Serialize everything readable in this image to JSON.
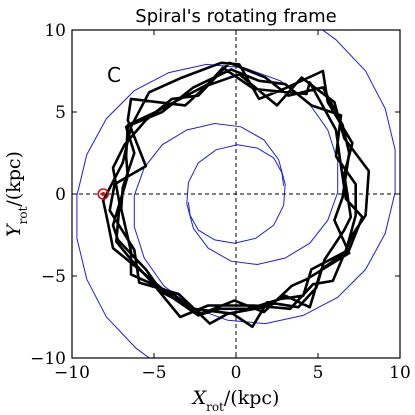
{
  "chart_data": {
    "type": "line",
    "title": "Spiral's rotating frame",
    "panel_label": "C",
    "xlabel": {
      "symbol": "X",
      "subscript": "rot",
      "unit": "/(kpc)"
    },
    "ylabel": {
      "symbol": "Y",
      "subscript": "rot",
      "unit": "/(kpc)"
    },
    "xlim": [
      -10,
      10
    ],
    "ylim": [
      -10,
      10
    ],
    "xticks": [
      -10,
      -5,
      0,
      5,
      10
    ],
    "yticks": [
      -10,
      -5,
      0,
      5,
      10
    ],
    "xtick_labels": [
      "−10",
      "−5",
      "0",
      "5",
      "10"
    ],
    "ytick_labels": [
      "−10",
      "−5",
      "0",
      "5",
      "10"
    ],
    "zero_lines": {
      "x": 0,
      "y": 0,
      "style": "dashed"
    },
    "grid": false,
    "colors": {
      "spiral_arms": "#1f1fd6",
      "orbit": "#000000",
      "sun_marker": "#d01010"
    },
    "series": [
      {
        "role": "spiral-arms",
        "arms": [
          {
            "points": [
              [
                2.9,
                0.5
              ],
              [
                2.8,
                1.3
              ],
              [
                2.3,
                2.2
              ],
              [
                1.3,
                2.8
              ],
              [
                0.1,
                3.0
              ],
              [
                -1.2,
                2.7
              ],
              [
                -2.3,
                1.9
              ],
              [
                -2.9,
                0.7
              ],
              [
                -3.0,
                -0.6
              ],
              [
                -2.6,
                -2.1
              ],
              [
                -1.7,
                -3.3
              ],
              [
                -0.3,
                -4.1
              ],
              [
                1.3,
                -4.3
              ],
              [
                3.0,
                -3.9
              ],
              [
                4.5,
                -3.0
              ],
              [
                5.6,
                -1.6
              ],
              [
                6.2,
                0.1
              ],
              [
                6.2,
                2.0
              ],
              [
                5.6,
                3.9
              ],
              [
                4.4,
                5.6
              ],
              [
                2.7,
                6.9
              ],
              [
                0.5,
                7.7
              ],
              [
                -1.8,
                7.9
              ],
              [
                -4.1,
                7.4
              ],
              [
                -6.2,
                6.3
              ],
              [
                -7.9,
                4.6
              ],
              [
                -9.1,
                2.4
              ],
              [
                -9.7,
                -0.1
              ],
              [
                -9.7,
                -2.7
              ],
              [
                -9.1,
                -5.2
              ],
              [
                -7.9,
                -7.5
              ],
              [
                -6.1,
                -9.4
              ],
              [
                -4.2,
                -10.8
              ],
              [
                -1.5,
                -11.7
              ],
              [
                1.0,
                -12.0
              ]
            ]
          },
          {
            "points": [
              [
                -2.9,
                -0.5
              ],
              [
                -2.8,
                -1.3
              ],
              [
                -2.3,
                -2.2
              ],
              [
                -1.3,
                -2.8
              ],
              [
                -0.1,
                -3.0
              ],
              [
                1.2,
                -2.7
              ],
              [
                2.3,
                -1.9
              ],
              [
                2.9,
                -0.7
              ],
              [
                3.0,
                0.6
              ],
              [
                2.6,
                2.1
              ],
              [
                1.7,
                3.3
              ],
              [
                0.3,
                4.1
              ],
              [
                -1.3,
                4.3
              ],
              [
                -3.0,
                3.9
              ],
              [
                -4.5,
                3.0
              ],
              [
                -5.6,
                1.6
              ],
              [
                -6.2,
                -0.1
              ],
              [
                -6.2,
                -2.0
              ],
              [
                -5.6,
                -3.9
              ],
              [
                -4.4,
                -5.6
              ],
              [
                -2.7,
                -6.9
              ],
              [
                -0.5,
                -7.7
              ],
              [
                1.8,
                -7.9
              ],
              [
                4.1,
                -7.4
              ],
              [
                6.2,
                -6.3
              ],
              [
                7.9,
                -4.6
              ],
              [
                9.1,
                -2.4
              ],
              [
                9.7,
                0.1
              ],
              [
                9.7,
                2.7
              ],
              [
                9.1,
                5.2
              ],
              [
                7.9,
                7.5
              ],
              [
                6.1,
                9.4
              ],
              [
                4.2,
                10.8
              ],
              [
                1.5,
                11.7
              ],
              [
                -1.0,
                12.0
              ]
            ]
          }
        ]
      },
      {
        "role": "orbit",
        "points": [
          [
            -8.1,
            -0.4
          ],
          [
            -6.9,
            1.9
          ],
          [
            -6.4,
            4.1
          ],
          [
            -5.3,
            6.2
          ],
          [
            -3.3,
            7.1
          ],
          [
            -0.9,
            8.0
          ],
          [
            0.2,
            7.9
          ],
          [
            1.4,
            5.8
          ],
          [
            2.9,
            6.4
          ],
          [
            5.3,
            7.5
          ],
          [
            5.6,
            5.6
          ],
          [
            7.1,
            3.1
          ],
          [
            6.6,
            1.2
          ],
          [
            7.0,
            -1.4
          ],
          [
            6.6,
            -2.2
          ],
          [
            5.4,
            -4.0
          ],
          [
            4.9,
            -5.7
          ],
          [
            3.8,
            -6.9
          ],
          [
            1.9,
            -6.6
          ],
          [
            1.0,
            -8.1
          ],
          [
            -0.2,
            -7.3
          ],
          [
            -2.6,
            -7.0
          ],
          [
            -4.5,
            -6.0
          ],
          [
            -5.5,
            -4.6
          ],
          [
            -7.2,
            -2.8
          ],
          [
            -7.5,
            -1.9
          ],
          [
            -6.6,
            1.1
          ],
          [
            -6.7,
            2.3
          ],
          [
            -6.6,
            4.2
          ],
          [
            -4.9,
            5.0
          ],
          [
            -1.7,
            6.7
          ],
          [
            -0.8,
            7.7
          ],
          [
            1.1,
            6.4
          ],
          [
            4.3,
            6.1
          ],
          [
            4.5,
            6.8
          ],
          [
            6.1,
            3.9
          ],
          [
            6.3,
            2.4
          ],
          [
            6.7,
            -0.3
          ],
          [
            7.7,
            -1.4
          ],
          [
            6.9,
            -3.4
          ],
          [
            5.2,
            -4.6
          ],
          [
            4.5,
            -6.9
          ],
          [
            3.0,
            -6.2
          ],
          [
            1.7,
            -6.9
          ],
          [
            -0.5,
            -7.3
          ],
          [
            -1.6,
            -7.9
          ],
          [
            -3.5,
            -6.1
          ],
          [
            -5.9,
            -5.4
          ],
          [
            -6.2,
            -3.4
          ],
          [
            -7.7,
            -1.0
          ],
          [
            -7.4,
            0.6
          ],
          [
            -5.5,
            1.7
          ],
          [
            -6.6,
            4.5
          ],
          [
            -6.4,
            5.8
          ],
          [
            -3.1,
            5.4
          ],
          [
            -1.8,
            6.6
          ],
          [
            0.2,
            7.3
          ],
          [
            2.5,
            5.4
          ],
          [
            4.0,
            7.1
          ],
          [
            6.0,
            5.6
          ],
          [
            6.6,
            3.4
          ],
          [
            8.1,
            1.4
          ],
          [
            7.9,
            -1.3
          ],
          [
            7.1,
            -2.5
          ],
          [
            5.9,
            -5.3
          ],
          [
            4.7,
            -5.5
          ],
          [
            3.3,
            -7.0
          ],
          [
            1.1,
            -6.8
          ],
          [
            -1.7,
            -6.8
          ],
          [
            -3.4,
            -7.5
          ],
          [
            -5.2,
            -5.3
          ],
          [
            -6.4,
            -4.0
          ],
          [
            -7.3,
            -2.9
          ],
          [
            -7.1,
            -0.6
          ],
          [
            -7.5,
            1.6
          ],
          [
            -6.8,
            3.0
          ],
          [
            -5.5,
            4.5
          ],
          [
            -3.9,
            5.8
          ],
          [
            -2.3,
            6.0
          ],
          [
            -0.4,
            8.0
          ],
          [
            1.8,
            7.1
          ],
          [
            3.2,
            6.0
          ],
          [
            5.3,
            6.5
          ],
          [
            6.5,
            4.2
          ],
          [
            6.9,
            2.5
          ],
          [
            6.5,
            -0.2
          ],
          [
            6.0,
            -1.6
          ],
          [
            6.9,
            -3.6
          ],
          [
            4.3,
            -5.2
          ],
          [
            3.4,
            -5.6
          ],
          [
            1.7,
            -7.2
          ],
          [
            -0.1,
            -6.5
          ],
          [
            -2.1,
            -7.3
          ],
          [
            -4.2,
            -5.9
          ],
          [
            -6.4,
            -4.9
          ],
          [
            -6.4,
            -3.5
          ],
          [
            -7.0,
            -0.9
          ],
          [
            -6.9,
            0.4
          ],
          [
            -6.2,
            2.5
          ],
          [
            -6.7,
            4.1
          ],
          [
            -4.5,
            5.0
          ],
          [
            -2.6,
            6.5
          ],
          [
            -0.3,
            7.6
          ],
          [
            1.4,
            6.9
          ],
          [
            3.0,
            6.7
          ],
          [
            4.6,
            5.4
          ],
          [
            6.4,
            4.8
          ],
          [
            6.1,
            2.3
          ],
          [
            7.3,
            0.6
          ],
          [
            7.3,
            -1.3
          ],
          [
            6.7,
            -3.5
          ],
          [
            4.6,
            -4.6
          ],
          [
            4.1,
            -6.2
          ],
          [
            2.7,
            -6.4
          ],
          [
            0.8,
            -7.0
          ],
          [
            -1.0,
            -7.0
          ],
          [
            -2.3,
            -7.4
          ],
          [
            -3.9,
            -6.3
          ],
          [
            -5.3,
            -5.1
          ],
          [
            -7.5,
            -3.3
          ],
          [
            -7.8,
            -1.8
          ],
          [
            -8.1,
            -0.4
          ]
        ]
      }
    ],
    "markers": [
      {
        "role": "sun-position",
        "x": -8.1,
        "y": 0.0
      }
    ]
  }
}
